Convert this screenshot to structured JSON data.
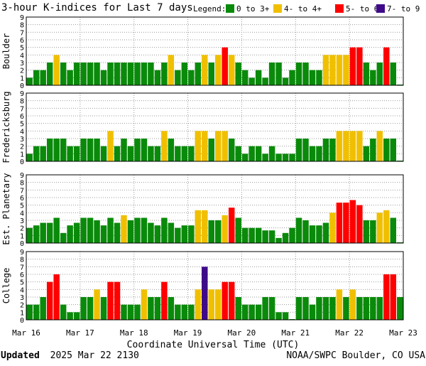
{
  "title": "3-hour K-indices for Last 7 days",
  "legend": {
    "label": "Legend:",
    "items": [
      {
        "label": "0 to 3+",
        "color": "#0a8a0a"
      },
      {
        "label": "4- to 4+",
        "color": "#f0c000"
      },
      {
        "label": "5- to 6+",
        "color": "#ff0000"
      },
      {
        "label": "7- to 9",
        "color": "#3f0a8a"
      }
    ]
  },
  "xlabel": "Coordinate Universal Time (UTC)",
  "footer": {
    "updated_label": "Updated",
    "updated_value": "2025 Mar 22 2130",
    "source": "NOAA/SWPC Boulder, CO USA"
  },
  "chart_data": {
    "type": "bar",
    "x_tick_labels": [
      "Mar 16",
      "Mar 17",
      "Mar 18",
      "Mar 19",
      "Mar 20",
      "Mar 21",
      "Mar 22",
      "Mar 23"
    ],
    "y_ticks": [
      0,
      1,
      2,
      3,
      4,
      5,
      6,
      7,
      8,
      9
    ],
    "ylim": [
      0,
      9
    ],
    "bins_per_day": 8,
    "grid": "dotted",
    "panels": [
      {
        "name": "Boulder",
        "values": [
          1,
          2,
          2,
          3,
          4,
          3,
          2,
          3,
          3,
          3,
          3,
          2,
          3,
          3,
          3,
          3,
          3,
          3,
          3,
          2,
          3,
          4,
          2,
          3,
          2,
          3,
          4,
          3,
          4,
          5,
          4,
          3,
          2,
          1,
          2,
          1,
          3,
          3,
          1,
          2,
          3,
          3,
          2,
          2,
          4,
          4,
          4,
          4,
          5,
          5,
          3,
          2,
          3,
          5,
          3,
          0
        ]
      },
      {
        "name": "Fredericksburg",
        "values": [
          1,
          2,
          2,
          3,
          3,
          3,
          2,
          2,
          3,
          3,
          3,
          2,
          4,
          2,
          3,
          2,
          3,
          3,
          2,
          2,
          4,
          3,
          2,
          2,
          2,
          4,
          4,
          3,
          4,
          4,
          3,
          2,
          1,
          2,
          2,
          1,
          2,
          1,
          1,
          1,
          3,
          3,
          2,
          2,
          3,
          3,
          4,
          4,
          4,
          4,
          2,
          3,
          4,
          3,
          3,
          0
        ]
      },
      {
        "name": "Est. Planetary",
        "values": [
          2,
          2.33,
          2.67,
          2.67,
          3.33,
          1.33,
          2.33,
          2.67,
          3.33,
          3.33,
          3,
          2.33,
          3.33,
          2.67,
          3.67,
          3,
          3.33,
          3.33,
          2.67,
          2.33,
          3.33,
          2.67,
          2,
          2.33,
          2.33,
          4.33,
          4.33,
          3,
          3,
          3.67,
          4.67,
          3.33,
          2,
          2,
          2,
          1.67,
          1.67,
          0.67,
          1.33,
          2,
          3.33,
          3,
          2.33,
          2.33,
          2.67,
          4,
          5.33,
          5.33,
          5.67,
          5,
          3,
          3,
          4,
          4.33,
          3.33,
          0
        ]
      },
      {
        "name": "College",
        "values": [
          2,
          2,
          3,
          5,
          6,
          2,
          1,
          1,
          3,
          3,
          4,
          3,
          5,
          5,
          2,
          2,
          2,
          4,
          3,
          3,
          5,
          3,
          2,
          2,
          2,
          4,
          7,
          4,
          4,
          5,
          5,
          3,
          2,
          2,
          2,
          3,
          3,
          1,
          1,
          0,
          3,
          3,
          2,
          3,
          3,
          3,
          4,
          3,
          4,
          3,
          3,
          3,
          3,
          6,
          6,
          3
        ]
      }
    ]
  }
}
